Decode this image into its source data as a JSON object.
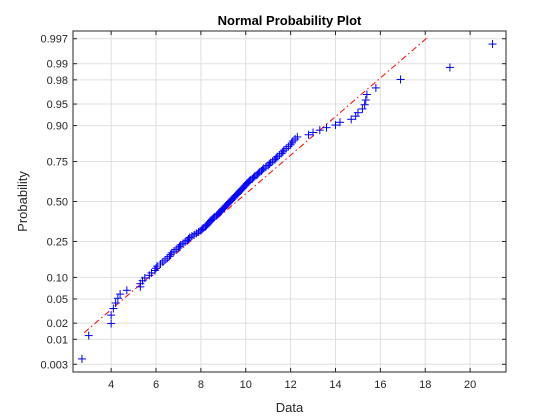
{
  "chart_data": {
    "type": "scatter",
    "title": "Normal Probability Plot",
    "xlabel": "Data",
    "ylabel": "Probability",
    "xlim": [
      2.3,
      21.6
    ],
    "ylim_probability": [
      0.002,
      0.998
    ],
    "y_scale": "normal-probability",
    "x_ticks": [
      4,
      6,
      8,
      10,
      12,
      14,
      16,
      18,
      20
    ],
    "x_tick_labels": [
      "4",
      "6",
      "8",
      "10",
      "12",
      "14",
      "16",
      "18",
      "20"
    ],
    "y_ticks": [
      0.003,
      0.01,
      0.02,
      0.05,
      0.1,
      0.25,
      0.5,
      0.75,
      0.9,
      0.95,
      0.98,
      0.99,
      0.997
    ],
    "y_tick_labels": [
      "0.003",
      "0.01",
      "0.02",
      "0.05",
      "0.10",
      "0.25",
      "0.50",
      "0.75",
      "0.90",
      "0.95",
      "0.98",
      "0.99",
      "0.997"
    ],
    "grid": true,
    "marker": "+",
    "marker_color": "#0000ff",
    "reference_line": {
      "color": "#ff0000",
      "style": "dash-dot",
      "mean": 9.6,
      "sigma": 3.07,
      "x_range": [
        2.8,
        18.1
      ]
    },
    "sorted_data": [
      2.7,
      3.0,
      4.0,
      4.0,
      4.1,
      4.2,
      4.3,
      4.4,
      4.7,
      5.3,
      5.3,
      5.4,
      5.5,
      5.7,
      5.8,
      5.95,
      6.0,
      6.05,
      6.2,
      6.3,
      6.4,
      6.5,
      6.6,
      6.65,
      6.7,
      6.8,
      6.9,
      7.0,
      7.05,
      7.1,
      7.2,
      7.3,
      7.4,
      7.45,
      7.5,
      7.6,
      7.7,
      7.8,
      7.9,
      8.0,
      8.05,
      8.1,
      8.2,
      8.25,
      8.3,
      8.35,
      8.4,
      8.45,
      8.5,
      8.55,
      8.6,
      8.7,
      8.75,
      8.8,
      8.85,
      8.9,
      8.95,
      9.0,
      9.05,
      9.1,
      9.15,
      9.2,
      9.25,
      9.3,
      9.35,
      9.4,
      9.45,
      9.5,
      9.55,
      9.6,
      9.65,
      9.7,
      9.75,
      9.8,
      9.85,
      9.9,
      9.95,
      10.0,
      10.05,
      10.1,
      10.15,
      10.2,
      10.3,
      10.35,
      10.4,
      10.5,
      10.55,
      10.6,
      10.7,
      10.75,
      10.8,
      10.9,
      11.0,
      11.05,
      11.1,
      11.2,
      11.3,
      11.35,
      11.4,
      11.5,
      11.6,
      11.65,
      11.7,
      11.8,
      11.9,
      12.0,
      12.05,
      12.1,
      12.2,
      12.3,
      12.8,
      13.0,
      13.3,
      13.6,
      14.0,
      14.2,
      14.7,
      14.9,
      15.0,
      15.2,
      15.3,
      15.35,
      15.4,
      15.8,
      16.9,
      19.1,
      21.0
    ]
  }
}
